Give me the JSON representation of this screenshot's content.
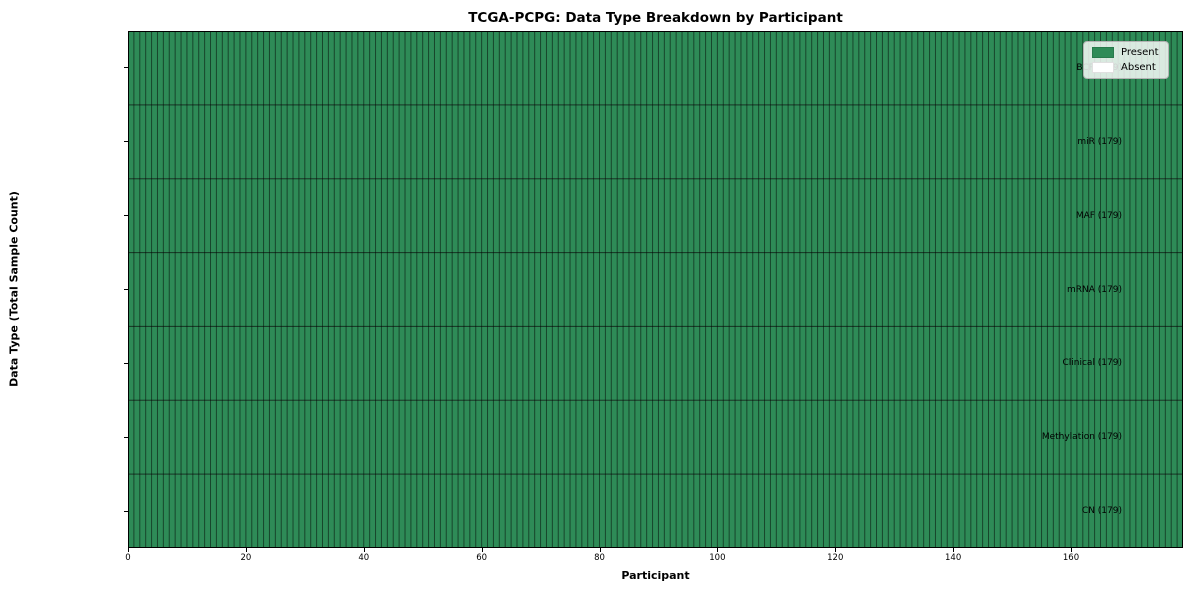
{
  "chart_data": {
    "type": "heatmap",
    "title": "TCGA-PCPG: Data Type Breakdown by Participant",
    "xlabel": "Participant",
    "ylabel": "Data Type (Total Sample Count)",
    "n_participants": 179,
    "x_range": [
      0,
      179
    ],
    "x_ticks": [
      0,
      20,
      40,
      60,
      80,
      100,
      120,
      140,
      160
    ],
    "grid": true,
    "rows": [
      {
        "label": "BCR (179)",
        "present_count": 179
      },
      {
        "label": "miR (179)",
        "present_count": 179
      },
      {
        "label": "MAF (179)",
        "present_count": 179
      },
      {
        "label": "mRNA (179)",
        "present_count": 179
      },
      {
        "label": "Clinical (179)",
        "present_count": 179
      },
      {
        "label": "Methylation (179)",
        "present_count": 179
      },
      {
        "label": "CN (179)",
        "present_count": 179
      }
    ],
    "legend": {
      "position": "upper right",
      "entries": [
        {
          "label": "Present",
          "color": "#2e8b57"
        },
        {
          "label": "Absent",
          "color": "#ffffff"
        }
      ]
    },
    "colors": {
      "present": "#2e8b57",
      "absent": "#ffffff",
      "cell_border": "rgba(0,0,0,0.5)",
      "row_border": "rgba(0,0,0,0.65)",
      "spine": "#000000"
    }
  }
}
